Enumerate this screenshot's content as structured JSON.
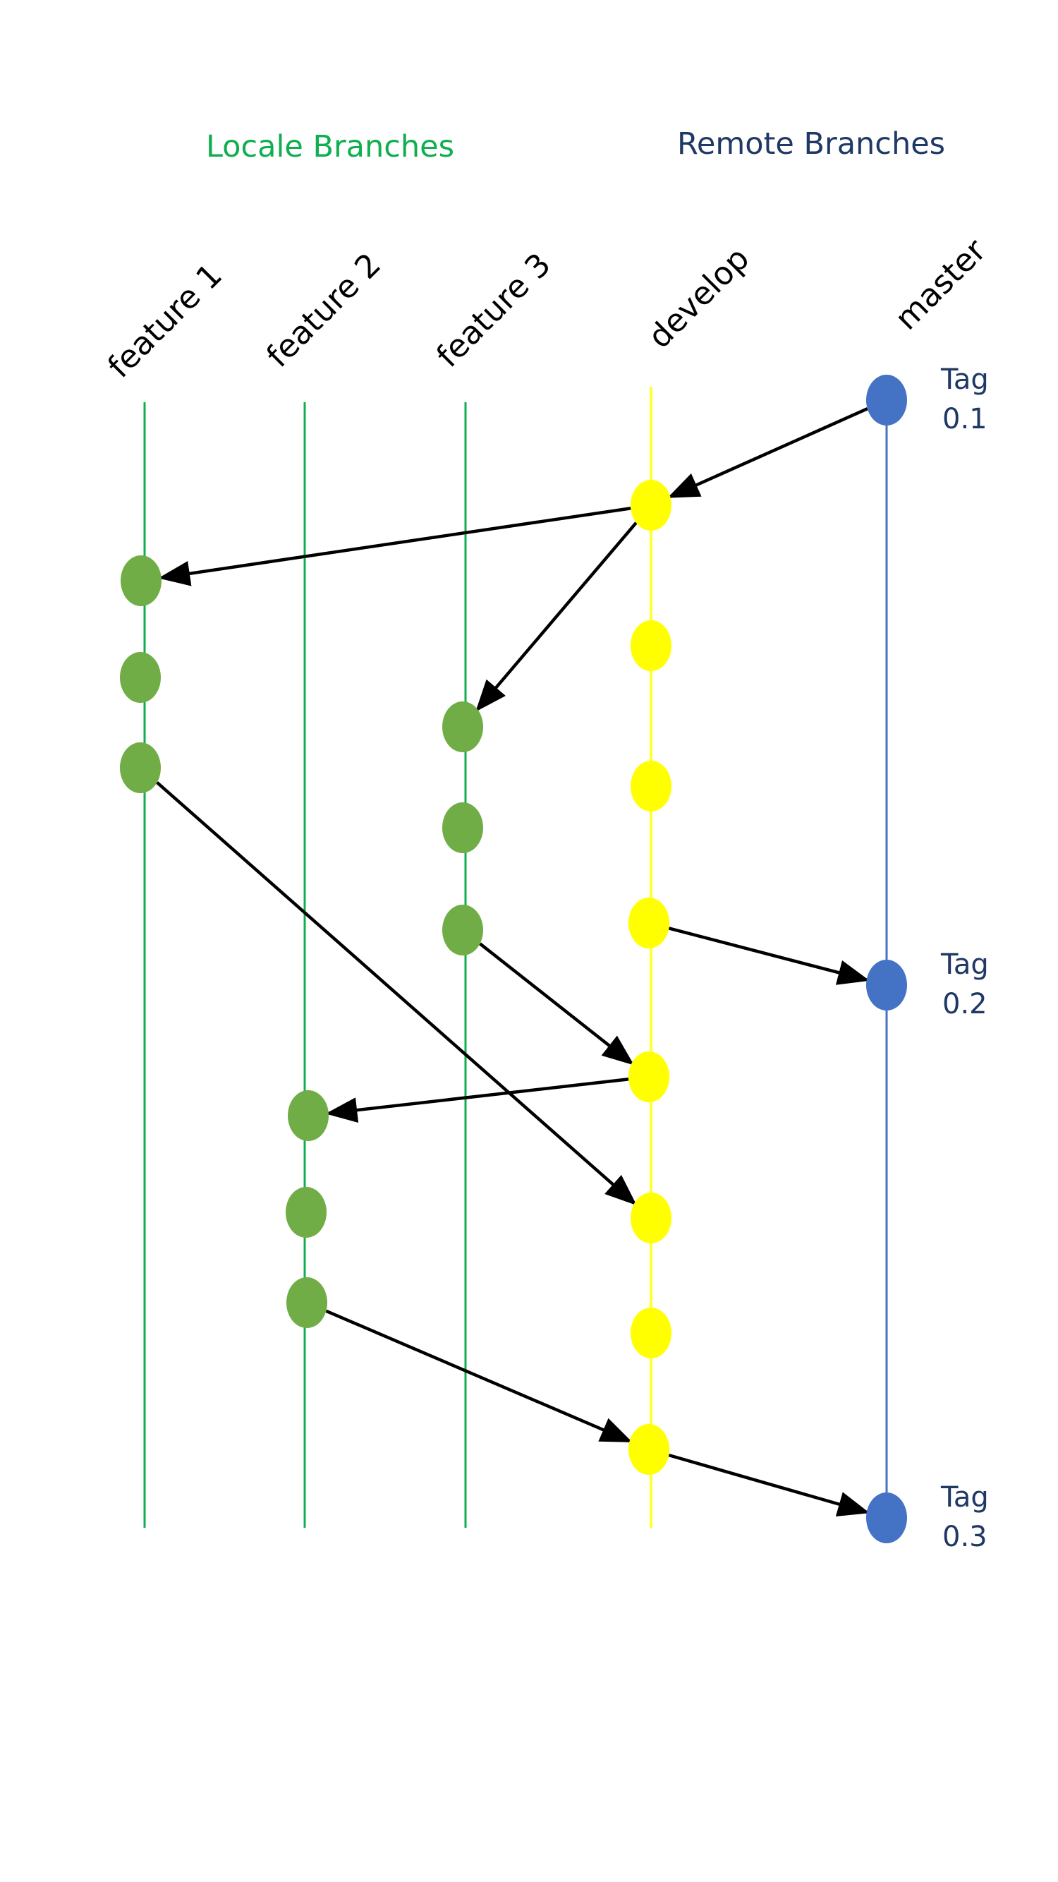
{
  "titles": {
    "local": "Locale Branches",
    "remote": "Remote Branches"
  },
  "colors": {
    "local_title": "#0fae4f",
    "remote_title": "#1f3864",
    "feature_line": "#0fae4f",
    "feature_commit": "#70ad47",
    "develop_line": "#ffff33",
    "develop_commit": "#ffff00",
    "master_line": "#4472c4",
    "master_commit": "#4472c4",
    "arrow": "#000000",
    "tag_text": "#1f3864"
  },
  "branches": [
    {
      "id": "feature1",
      "label": "feature 1"
    },
    {
      "id": "feature2",
      "label": "feature 2"
    },
    {
      "id": "feature3",
      "label": "feature 3"
    },
    {
      "id": "develop",
      "label": "develop"
    },
    {
      "id": "master",
      "label": "master"
    }
  ],
  "commits": {
    "feature1": [
      "f1-c1",
      "f1-c2",
      "f1-c3"
    ],
    "feature2": [
      "f2-c1",
      "f2-c2",
      "f2-c3"
    ],
    "feature3": [
      "f3-c1",
      "f3-c2",
      "f3-c3"
    ],
    "develop": [
      "d-c1",
      "d-c2",
      "d-c3",
      "d-c4",
      "d-c5",
      "d-c6",
      "d-c7",
      "d-c8"
    ],
    "master": [
      "m-c1",
      "m-c2",
      "m-c3"
    ]
  },
  "merges": [
    {
      "from": "m-c1",
      "to": "d-c1"
    },
    {
      "from": "d-c1",
      "to": "f1-c1"
    },
    {
      "from": "d-c1",
      "to": "f3-c1"
    },
    {
      "from": "d-c4",
      "to": "m-c2"
    },
    {
      "from": "f3-c3",
      "to": "d-c5"
    },
    {
      "from": "d-c5",
      "to": "f2-c1"
    },
    {
      "from": "f1-c3",
      "to": "d-c6"
    },
    {
      "from": "f2-c3",
      "to": "d-c8"
    },
    {
      "from": "d-c8",
      "to": "m-c3"
    }
  ],
  "tags": [
    {
      "commit": "m-c1",
      "word": "Tag",
      "version": "0.1"
    },
    {
      "commit": "m-c2",
      "word": "Tag",
      "version": "0.2"
    },
    {
      "commit": "m-c3",
      "word": "Tag",
      "version": "0.3"
    }
  ]
}
